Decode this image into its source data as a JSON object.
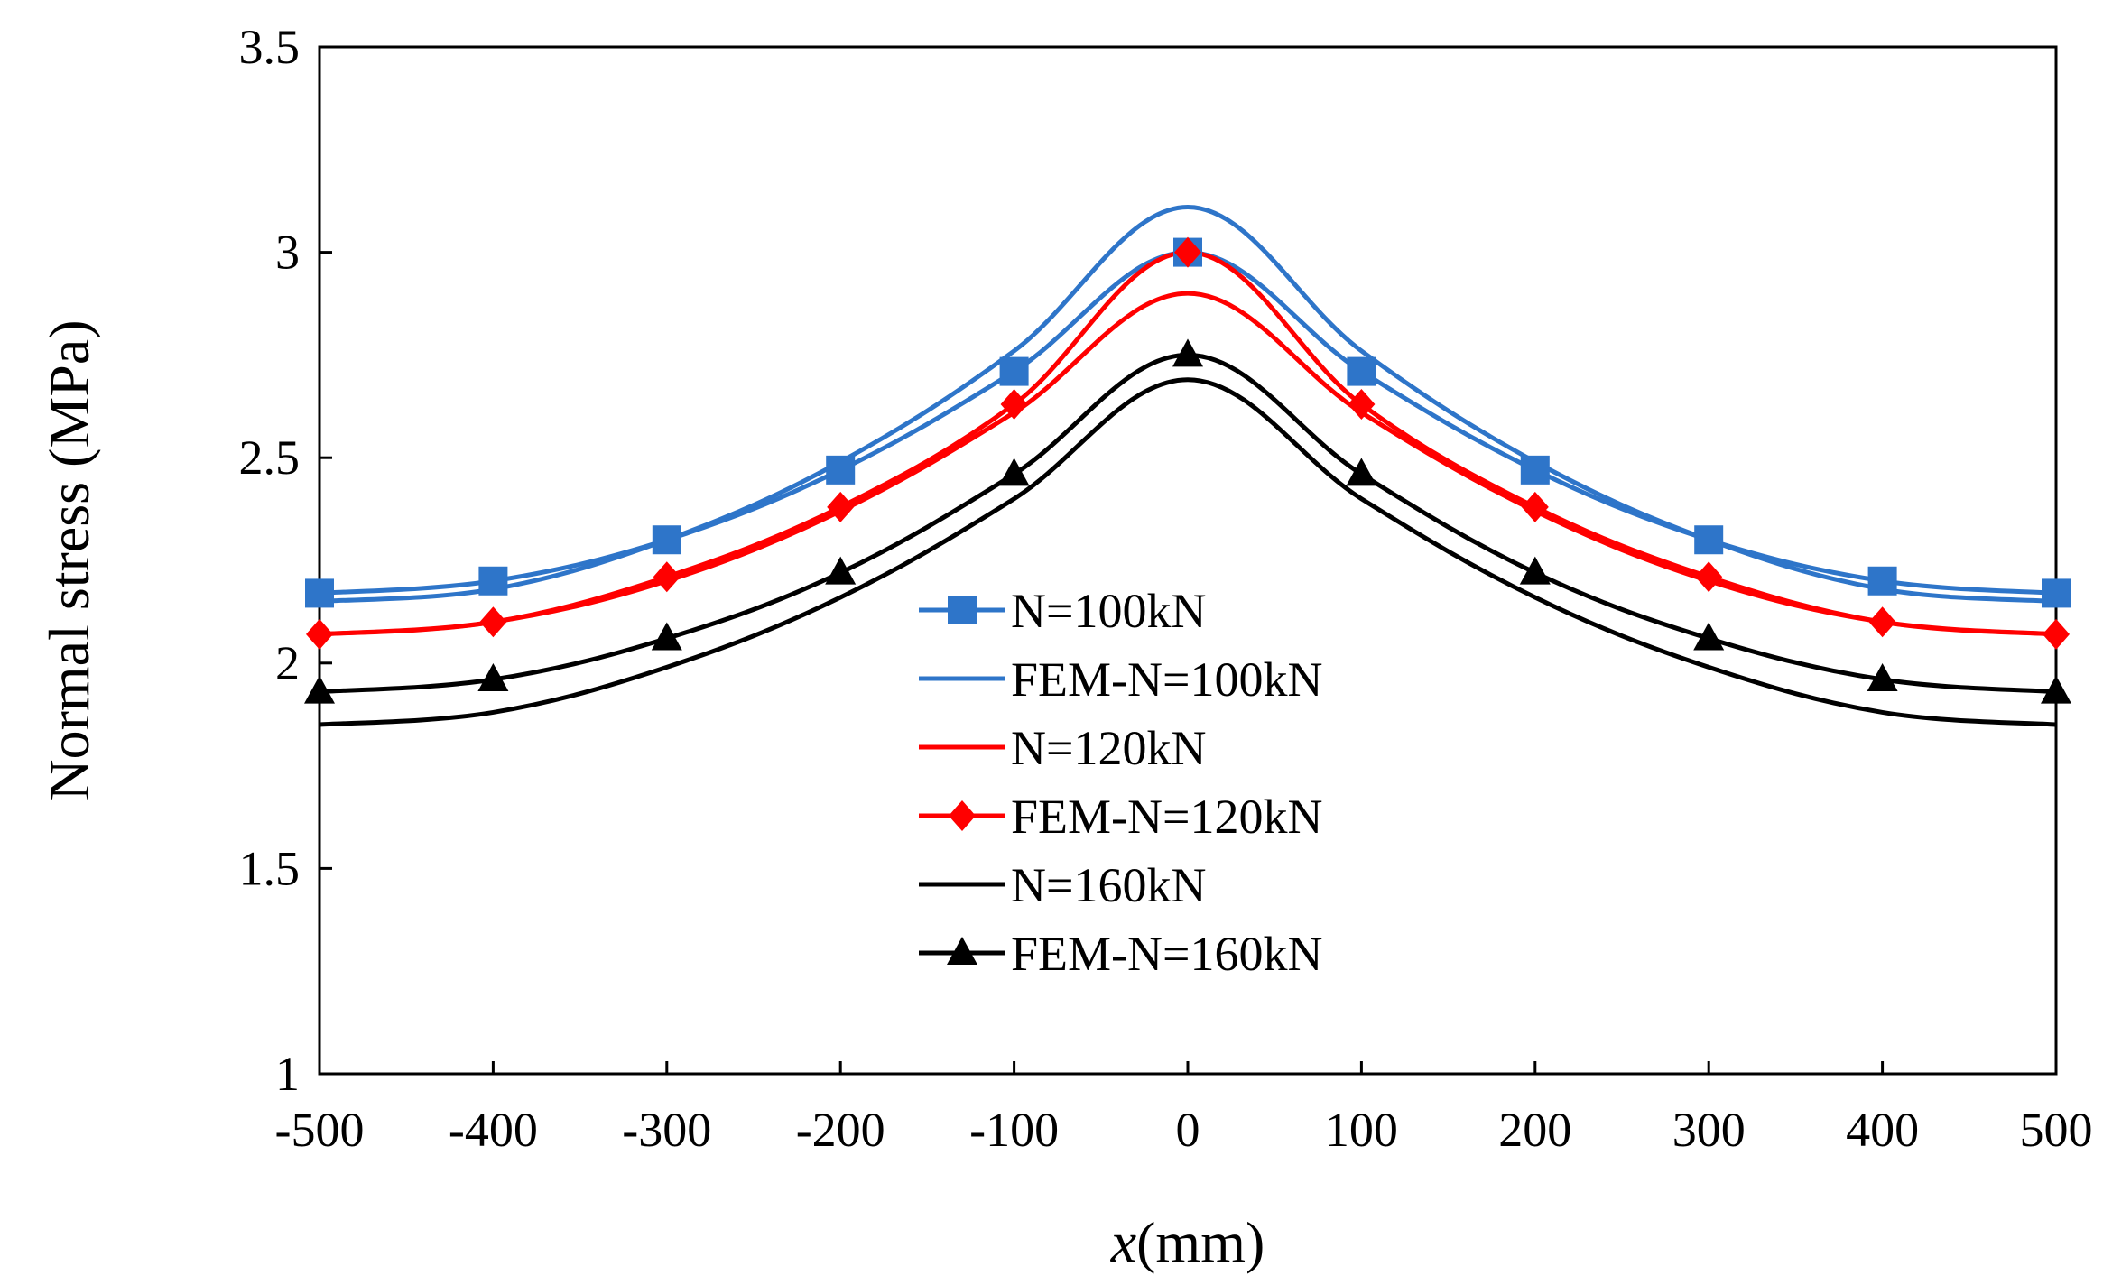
{
  "chart_data": {
    "type": "line",
    "title": "",
    "xlabel_italic": "x",
    "xlabel_unit": "(mm)",
    "ylabel": "Normal stress (MPa)",
    "xlim": [
      -500,
      500
    ],
    "ylim": [
      1,
      3.5
    ],
    "x_ticks": [
      -500,
      -400,
      -300,
      -200,
      -100,
      0,
      100,
      200,
      300,
      400,
      500
    ],
    "y_ticks": [
      1,
      1.5,
      2,
      2.5,
      3,
      3.5
    ],
    "grid": false,
    "legend_position": "center",
    "x": [
      -500,
      -400,
      -300,
      -200,
      -100,
      0,
      100,
      200,
      300,
      400,
      500
    ],
    "series": [
      {
        "name": "N=100kN",
        "color": "#2e75c9",
        "marker": "square",
        "line": true,
        "values": [
          2.17,
          2.2,
          2.3,
          2.47,
          2.71,
          3.0,
          2.71,
          2.47,
          2.3,
          2.2,
          2.17
        ]
      },
      {
        "name": "FEM-N=100kN",
        "color": "#2e75c9",
        "marker": "none",
        "line": true,
        "values": [
          2.15,
          2.18,
          2.3,
          2.49,
          2.76,
          3.11,
          2.76,
          2.49,
          2.3,
          2.18,
          2.15
        ]
      },
      {
        "name": "N=120kN",
        "color": "#ff0000",
        "marker": "none",
        "line": true,
        "values": [
          2.07,
          2.1,
          2.2,
          2.37,
          2.61,
          2.9,
          2.61,
          2.37,
          2.2,
          2.1,
          2.07
        ]
      },
      {
        "name": "FEM-N=120kN",
        "color": "#ff0000",
        "marker": "diamond",
        "line": true,
        "values": [
          2.07,
          2.1,
          2.21,
          2.38,
          2.63,
          3.0,
          2.63,
          2.38,
          2.21,
          2.1,
          2.07
        ]
      },
      {
        "name": "N=160kN",
        "color": "#000000",
        "marker": "none",
        "line": true,
        "values": [
          1.85,
          1.88,
          1.99,
          2.16,
          2.4,
          2.69,
          2.4,
          2.16,
          1.99,
          1.88,
          1.85
        ]
      },
      {
        "name": "FEM-N=160kN",
        "color": "#000000",
        "marker": "triangle",
        "line": true,
        "values": [
          1.93,
          1.96,
          2.06,
          2.22,
          2.46,
          2.75,
          2.46,
          2.22,
          2.06,
          1.96,
          1.93
        ]
      }
    ]
  }
}
